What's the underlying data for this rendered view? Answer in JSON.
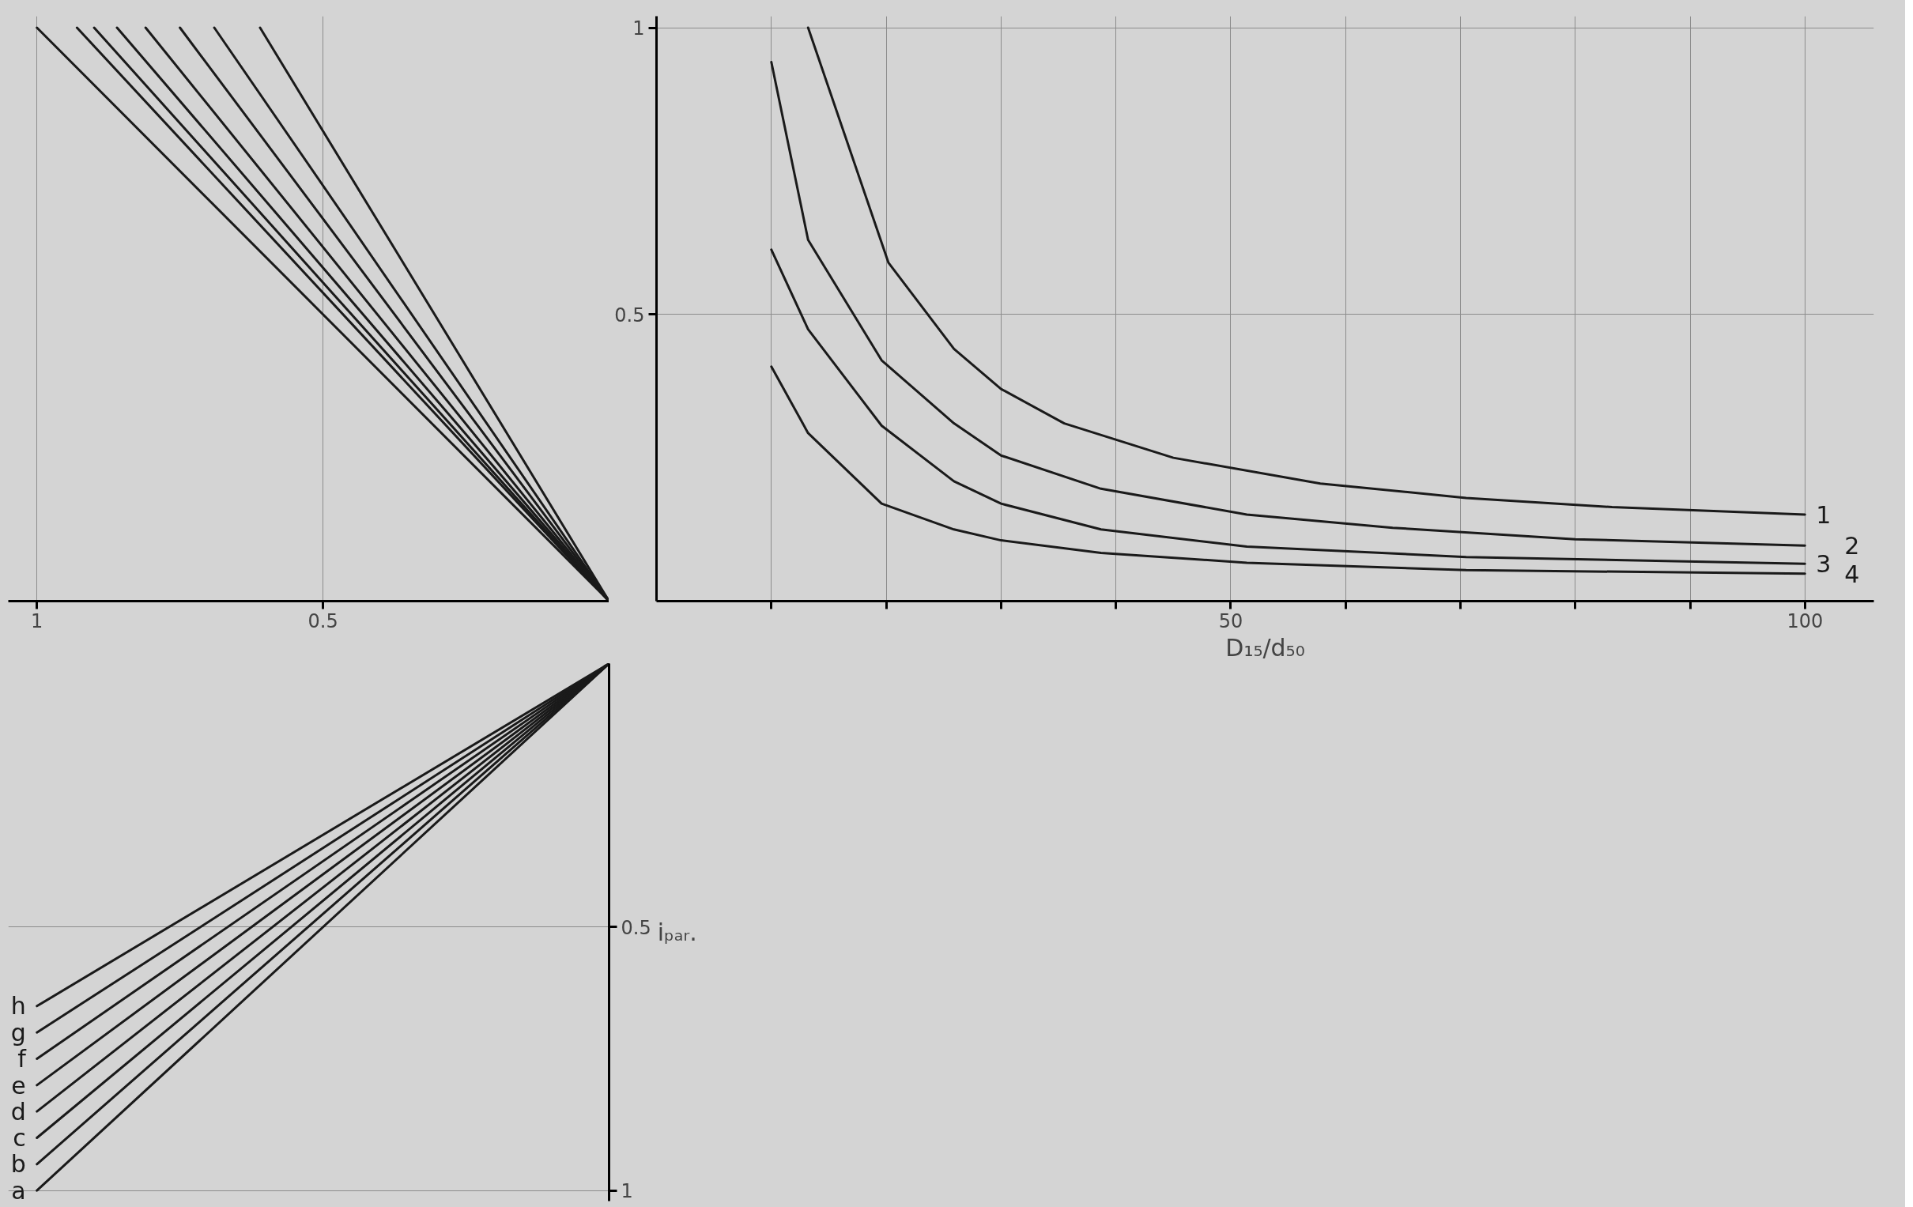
{
  "chart_data": [
    {
      "type": "line",
      "xlim": [
        1.05,
        0
      ],
      "ylim": [
        0,
        1.02
      ],
      "xticks": [
        1,
        0.5
      ],
      "tick_labels": "x",
      "grid": true,
      "series": [
        {
          "color": "#1a1a1a",
          "x": [
            0,
            1.0
          ],
          "values": [
            0,
            1
          ]
        },
        {
          "color": "#1a1a1a",
          "x": [
            0,
            0.93
          ],
          "values": [
            0,
            1
          ]
        },
        {
          "color": "#1a1a1a",
          "x": [
            0,
            0.9
          ],
          "values": [
            0,
            1
          ]
        },
        {
          "color": "#1a1a1a",
          "x": [
            0,
            0.86
          ],
          "values": [
            0,
            1
          ]
        },
        {
          "color": "#1a1a1a",
          "x": [
            0,
            0.81
          ],
          "values": [
            0,
            1
          ]
        },
        {
          "color": "#1a1a1a",
          "x": [
            0,
            0.75
          ],
          "values": [
            0,
            1
          ]
        },
        {
          "color": "#1a1a1a",
          "x": [
            0,
            0.69
          ],
          "values": [
            0,
            1
          ]
        },
        {
          "color": "#1a1a1a",
          "x": [
            0,
            0.61
          ],
          "values": [
            0,
            1
          ]
        }
      ]
    },
    {
      "type": "line",
      "xlabel": "D₁₅/d₅₀",
      "xlim": [
        0,
        106
      ],
      "ylim": [
        0,
        1.02
      ],
      "xticks": [
        {
          "value": 10,
          "label": null
        },
        {
          "value": 20,
          "label": null
        },
        {
          "value": 30,
          "label": null
        },
        {
          "value": 40,
          "label": null
        },
        50,
        {
          "value": 60,
          "label": null
        },
        {
          "value": 70,
          "label": null
        },
        {
          "value": 80,
          "label": null
        },
        {
          "value": 90,
          "label": null
        },
        100
      ],
      "yticks": [
        0.5,
        1
      ],
      "grid": true,
      "series": [
        {
          "name": "1",
          "color": "#1a1a1a",
          "x": [
            13.2,
            20.2,
            25.9,
            30,
            35.5,
            45,
            57.8,
            70.5,
            83.2,
            100
          ],
          "values": [
            1.0,
            0.59,
            0.44,
            0.37,
            0.31,
            0.25,
            0.205,
            0.18,
            0.164,
            0.151
          ]
        },
        {
          "name": "2",
          "color": "#1a1a1a",
          "x": [
            10,
            13.2,
            19.6,
            25.9,
            30,
            38.7,
            51.4,
            64.1,
            80,
            100
          ],
          "values": [
            0.94,
            0.63,
            0.42,
            0.31,
            0.254,
            0.196,
            0.151,
            0.128,
            0.108,
            0.097
          ]
        },
        {
          "name": "3",
          "color": "#1a1a1a",
          "x": [
            10,
            13.2,
            19.6,
            25.9,
            30,
            38.7,
            51.4,
            70.5,
            100
          ],
          "values": [
            0.613,
            0.474,
            0.306,
            0.209,
            0.17,
            0.125,
            0.095,
            0.077,
            0.065
          ]
        },
        {
          "name": "4",
          "color": "#1a1a1a",
          "x": [
            10,
            13.2,
            19.6,
            25.9,
            30,
            38.7,
            51.4,
            70.5,
            100
          ],
          "values": [
            0.409,
            0.293,
            0.17,
            0.125,
            0.106,
            0.084,
            0.067,
            0.054,
            0.048
          ]
        }
      ]
    },
    {
      "type": "line",
      "ylabel": "iₚₐᵣ.",
      "xlim": [
        1.05,
        0
      ],
      "ylim": [
        1.02,
        0
      ],
      "yticks": [
        0.5,
        1
      ],
      "tick_labels": "y",
      "grid": true,
      "series": [
        {
          "name": "a",
          "color": "#1a1a1a",
          "x": [
            0,
            1
          ],
          "values": [
            0,
            1.0
          ]
        },
        {
          "name": "b",
          "color": "#1a1a1a",
          "x": [
            0,
            1
          ],
          "values": [
            0,
            0.95
          ]
        },
        {
          "name": "c",
          "color": "#1a1a1a",
          "x": [
            0,
            1
          ],
          "values": [
            0,
            0.9
          ]
        },
        {
          "name": "d",
          "color": "#1a1a1a",
          "x": [
            0,
            1
          ],
          "values": [
            0,
            0.85
          ]
        },
        {
          "name": "e",
          "color": "#1a1a1a",
          "x": [
            0,
            1
          ],
          "values": [
            0,
            0.8
          ]
        },
        {
          "name": "f",
          "color": "#1a1a1a",
          "x": [
            0,
            1
          ],
          "values": [
            0,
            0.75
          ]
        },
        {
          "name": "g",
          "color": "#1a1a1a",
          "x": [
            0,
            1
          ],
          "values": [
            0,
            0.7
          ]
        },
        {
          "name": "h",
          "color": "#1a1a1a",
          "x": [
            0,
            1
          ],
          "values": [
            0,
            0.65
          ]
        }
      ]
    }
  ]
}
